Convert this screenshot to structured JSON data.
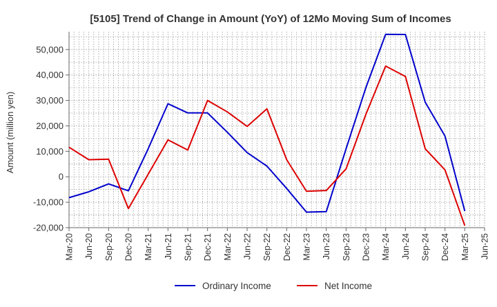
{
  "chart_data": {
    "type": "line",
    "title": "[5105]  Trend of Change in Amount (YoY) of 12Mo Moving Sum of Incomes",
    "xlabel": "",
    "ylabel": "Amount (million yen)",
    "ylim": [
      -20000,
      57000
    ],
    "yticks": [
      -20000,
      -10000,
      0,
      10000,
      20000,
      30000,
      40000,
      50000
    ],
    "ytick_labels": [
      "-20,000",
      "-10,000",
      "0",
      "10,000",
      "20,000",
      "30,000",
      "40,000",
      "50,000"
    ],
    "categories": [
      "Mar-20",
      "Jun-20",
      "Sep-20",
      "Dec-20",
      "Mar-21",
      "Jun-21",
      "Sep-21",
      "Dec-21",
      "Mar-22",
      "Jun-22",
      "Sep-22",
      "Dec-22",
      "Mar-23",
      "Jun-23",
      "Sep-23",
      "Dec-23",
      "Mar-24",
      "Jun-24",
      "Sep-24",
      "Dec-24",
      "Mar-25",
      "Jun-25"
    ],
    "grid": true,
    "legend_position": "bottom",
    "series": [
      {
        "name": "Ordinary Income",
        "color": "#0000cc",
        "values": [
          -8200,
          -5900,
          -2800,
          -5500,
          11000,
          28700,
          25100,
          25100,
          17500,
          9500,
          4200,
          -4600,
          -13900,
          -13700,
          11000,
          35000,
          56000,
          55900,
          29300,
          16000,
          -13500,
          null
        ]
      },
      {
        "name": "Net Income",
        "color": "#dd0000",
        "values": [
          11600,
          6700,
          6900,
          -12500,
          1000,
          14500,
          10500,
          30000,
          25500,
          19800,
          26700,
          6700,
          -5700,
          -5400,
          3100,
          24500,
          43500,
          39400,
          11000,
          2700,
          -19200,
          null
        ]
      }
    ]
  }
}
